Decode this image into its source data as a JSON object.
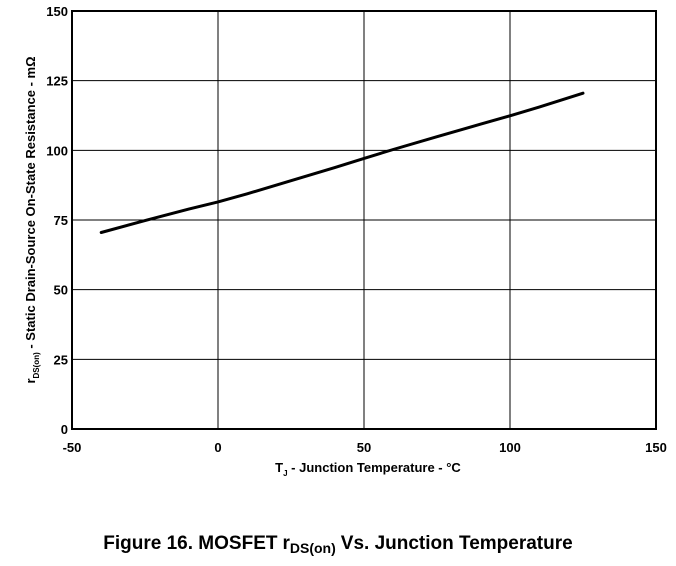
{
  "chart_data": {
    "type": "line",
    "xlim": [
      -50,
      150
    ],
    "ylim": [
      0,
      150
    ],
    "x_ticks": [
      "-50",
      "0",
      "50",
      "100",
      "150"
    ],
    "y_ticks": [
      "0",
      "25",
      "50",
      "75",
      "100",
      "125",
      "150"
    ],
    "grid": true,
    "xlabel": {
      "main": "T",
      "sub": "J",
      "rest": " - Junction Temperature - °C"
    },
    "ylabel": {
      "main": "r",
      "sub": "DS(on)",
      "rest": " - Static Drain-Source On-State Resistance - mΩ"
    },
    "series": [
      {
        "color": "#000000",
        "x": [
          -40,
          -25,
          -10,
          0,
          10,
          25,
          40,
          50,
          60,
          75,
          90,
          100,
          110,
          125
        ],
        "y": [
          70.5,
          74.8,
          78.9,
          81.5,
          84.4,
          89.1,
          93.8,
          97.1,
          100.3,
          104.9,
          109.4,
          112.4,
          115.5,
          120.5
        ]
      }
    ]
  },
  "caption": {
    "prefix": "Figure 16. MOSFET",
    "r": "r",
    "r_sub": "DS(on)",
    "rest": "Vs. Junction Temperature"
  }
}
